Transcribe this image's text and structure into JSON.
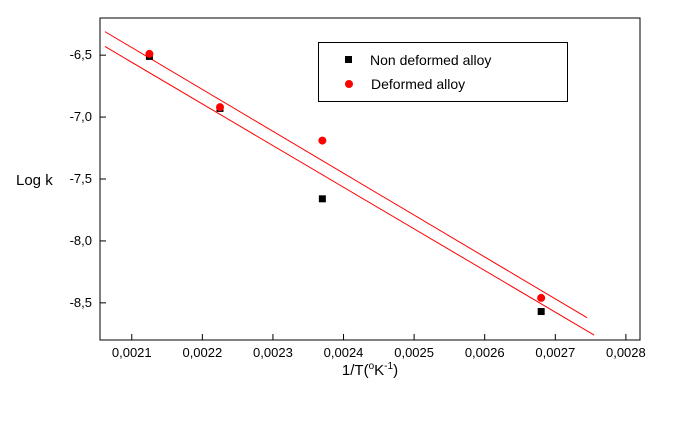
{
  "chart_data": {
    "type": "scatter",
    "title": "",
    "ylabel": "Log k",
    "xlabel": "1/T(°K⁻¹)",
    "xlabel_parts": {
      "base": "1/T(",
      "degree": "o",
      "unit": "K",
      "exponent": "-1",
      "close": ")"
    },
    "xlim": [
      0.002055,
      0.00282
    ],
    "ylim": [
      -8.8,
      -6.2
    ],
    "grid": false,
    "legend_position": "top-center",
    "x_ticks": [
      {
        "value": 0.0021,
        "label": "0,0021"
      },
      {
        "value": 0.0022,
        "label": "0,0022"
      },
      {
        "value": 0.0023,
        "label": "0,0023"
      },
      {
        "value": 0.0024,
        "label": "0,0024"
      },
      {
        "value": 0.0025,
        "label": "0,0025"
      },
      {
        "value": 0.0026,
        "label": "0,0026"
      },
      {
        "value": 0.0027,
        "label": "0,0027"
      },
      {
        "value": 0.0028,
        "label": "0,0028"
      }
    ],
    "y_ticks": [
      {
        "value": -6.5,
        "label": "-6,5"
      },
      {
        "value": -7.0,
        "label": "-7,0"
      },
      {
        "value": -7.5,
        "label": "-7,5"
      },
      {
        "value": -8.0,
        "label": "-8,0"
      },
      {
        "value": -8.5,
        "label": "-8,5"
      }
    ],
    "series": [
      {
        "name": "Non deformed alloy",
        "marker": "square",
        "color": "#000000",
        "points": [
          [
            0.002125,
            -6.51
          ],
          [
            0.002225,
            -6.93
          ],
          [
            0.00237,
            -7.66
          ],
          [
            0.00268,
            -8.57
          ]
        ]
      },
      {
        "name": "Deformed alloy",
        "marker": "circle",
        "color": "#ff0000",
        "points": [
          [
            0.002125,
            -6.49
          ],
          [
            0.002225,
            -6.92
          ],
          [
            0.00237,
            -7.19
          ],
          [
            0.00268,
            -8.46
          ]
        ]
      }
    ],
    "trend_lines": [
      {
        "name": "deformed-fit",
        "color": "#ff0000",
        "from": [
          0.002062,
          -6.31
        ],
        "to": [
          0.002745,
          -8.62
        ]
      },
      {
        "name": "non-deformed-fit",
        "color": "#ff0000",
        "from": [
          0.002062,
          -6.43
        ],
        "to": [
          0.002755,
          -8.76
        ]
      }
    ]
  }
}
